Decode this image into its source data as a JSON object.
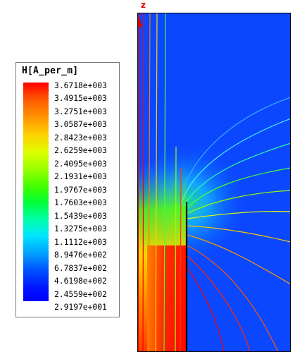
{
  "legend": {
    "title": "H[A_per_m]",
    "ticks": [
      "3.6718e+003",
      "3.4915e+003",
      "3.2751e+003",
      "3.0587e+003",
      "2.8423e+003",
      "2.6259e+003",
      "2.4095e+003",
      "2.1931e+003",
      "1.9767e+003",
      "1.7603e+003",
      "1.5439e+003",
      "1.3275e+003",
      "1.1112e+003",
      "8.9476e+002",
      "6.7837e+002",
      "4.6198e+002",
      "2.4559e+002",
      "2.9197e+001"
    ]
  },
  "axis": {
    "z_label": "z",
    "axis_color": "#e00000"
  },
  "colors": {
    "field_low": "#0a3cff",
    "field_high": "#ff0000",
    "conductor": "#000000"
  }
}
